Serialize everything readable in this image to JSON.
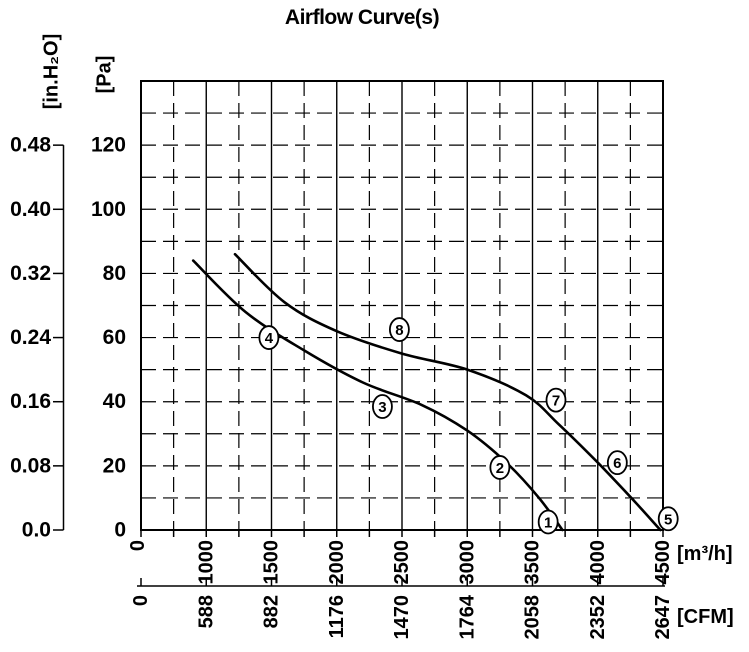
{
  "title": "Airflow Curve(s)",
  "colors": {
    "foreground": "#000000",
    "background": "#ffffff"
  },
  "chart_data": {
    "type": "line",
    "title": "Airflow Curve(s)",
    "legend_position": "none",
    "grid": {
      "vertical_major": "solid",
      "vertical_minor": "dashed",
      "horizontal_major": "dashed",
      "horizontal_minor": "dashed",
      "minor_divisions_per_major": 2
    },
    "x_axes": [
      {
        "name": "airflow-m3h",
        "unit": "[m³/h]",
        "tick_labels": [
          "0",
          "1000",
          "1500",
          "2000",
          "2500",
          "3000",
          "3500",
          "4000",
          "4500"
        ],
        "tick_values": [
          0,
          1000,
          1500,
          2000,
          2500,
          3000,
          3500,
          4000,
          4500
        ],
        "range": [
          0,
          4500
        ],
        "scale_note": "first grid division spans 0-1000, remaining divisions span 500 each"
      },
      {
        "name": "airflow-cfm",
        "unit": "[CFM]",
        "tick_labels": [
          "0",
          "588",
          "882",
          "1176",
          "1470",
          "1764",
          "2058",
          "2352",
          "2647"
        ],
        "tick_values": [
          0,
          588,
          882,
          1176,
          1470,
          1764,
          2058,
          2352,
          2647
        ]
      }
    ],
    "y_axes": [
      {
        "name": "pressure-pa",
        "unit": "[Pa]",
        "tick_labels": [
          "120",
          "100",
          "80",
          "60",
          "40",
          "20",
          "0"
        ],
        "tick_values": [
          120,
          100,
          80,
          60,
          40,
          20,
          0
        ],
        "range": [
          0,
          140
        ]
      },
      {
        "name": "pressure-inh2o",
        "unit": "[in.H₂O]",
        "tick_labels": [
          "0.48",
          "0.40",
          "0.32",
          "0.24",
          "0.16",
          "0.08",
          "0.0"
        ],
        "tick_values": [
          0.48,
          0.4,
          0.32,
          0.24,
          0.16,
          0.08,
          0.0
        ]
      }
    ],
    "series": [
      {
        "name": "fan-curve-models-1-4",
        "marker_labels": [
          "1",
          "2",
          "3",
          "4"
        ],
        "points_m3h_pa": [
          [
            800,
            84
          ],
          [
            1300,
            68
          ],
          [
            1750,
            56
          ],
          [
            2200,
            46
          ],
          [
            2650,
            39
          ],
          [
            3000,
            31
          ],
          [
            3300,
            21
          ],
          [
            3550,
            10
          ],
          [
            3730,
            0
          ]
        ]
      },
      {
        "name": "fan-curve-models-5-8",
        "marker_labels": [
          "5",
          "6",
          "7",
          "8"
        ],
        "points_m3h_pa": [
          [
            1220,
            86
          ],
          [
            1600,
            71
          ],
          [
            2000,
            62
          ],
          [
            2500,
            55
          ],
          [
            3000,
            50
          ],
          [
            3450,
            42
          ],
          [
            3700,
            33
          ],
          [
            4000,
            21
          ],
          [
            4280,
            9
          ],
          [
            4480,
            0
          ]
        ]
      }
    ],
    "curve_markers": [
      {
        "label": "1",
        "m3h": 3620,
        "pa": 2.5
      },
      {
        "label": "2",
        "m3h": 3250,
        "pa": 19.5
      },
      {
        "label": "3",
        "m3h": 2350,
        "pa": 38.5
      },
      {
        "label": "4",
        "m3h": 1480,
        "pa": 60
      },
      {
        "label": "5",
        "m3h": 4540,
        "pa": 3.5
      },
      {
        "label": "6",
        "m3h": 4150,
        "pa": 21
      },
      {
        "label": "7",
        "m3h": 3680,
        "pa": 40.5
      },
      {
        "label": "8",
        "m3h": 2480,
        "pa": 62.5
      }
    ]
  }
}
